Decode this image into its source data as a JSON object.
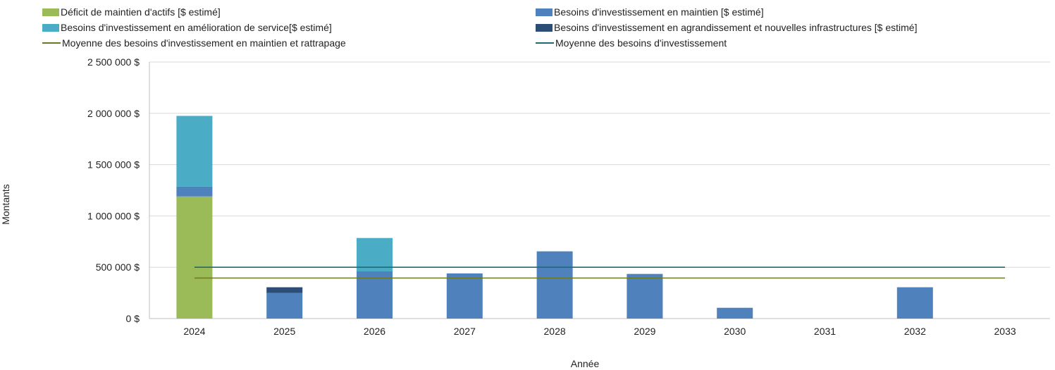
{
  "chart_data": {
    "type": "bar",
    "stacked": true,
    "title": "",
    "xlabel": "Année",
    "ylabel": "Montants",
    "ylim": [
      0,
      2500000
    ],
    "yticks": [
      0,
      500000,
      1000000,
      1500000,
      2000000,
      2500000
    ],
    "ytick_labels": [
      "0 $",
      "500 000 $",
      "1 000 000 $",
      "1 500 000 $",
      "2 000 000 $",
      "2 500 000 $"
    ],
    "categories": [
      "2024",
      "2025",
      "2026",
      "2027",
      "2028",
      "2029",
      "2030",
      "2031",
      "2032",
      "2033"
    ],
    "series": [
      {
        "name": "Déficit de maintien d'actifs [$ estimé]",
        "color": "#9bbb59",
        "kind": "bar",
        "values": [
          1190000,
          0,
          0,
          0,
          0,
          0,
          0,
          0,
          0,
          0
        ]
      },
      {
        "name": "Besoins d'investissement en maintien [$ estimé]",
        "color": "#4f81bd",
        "kind": "bar",
        "values": [
          95000,
          250000,
          460000,
          440000,
          655000,
          435000,
          105000,
          0,
          305000,
          0
        ]
      },
      {
        "name": "Besoins d'investissement en amélioration de service[$ estimé]",
        "color": "#4bacc6",
        "kind": "bar",
        "values": [
          690000,
          0,
          325000,
          0,
          0,
          0,
          0,
          0,
          0,
          0
        ]
      },
      {
        "name": "Besoins d'investissement en agrandissement et nouvelles infrastructures [$ estimé]",
        "color": "#2c4d75",
        "kind": "bar",
        "values": [
          0,
          55000,
          0,
          0,
          0,
          0,
          0,
          0,
          0,
          0
        ]
      },
      {
        "name": "Moyenne des besoins d'investissement en maintien et rattrapage",
        "color": "#6b7a1f",
        "kind": "line",
        "values": [
          395000,
          395000,
          395000,
          395000,
          395000,
          395000,
          395000,
          395000,
          395000,
          395000
        ]
      },
      {
        "name": "Moyenne des besoins d'investissement",
        "color": "#1f6b73",
        "kind": "line",
        "values": [
          500000,
          500000,
          500000,
          500000,
          500000,
          500000,
          500000,
          500000,
          500000,
          500000
        ]
      }
    ],
    "grid": true,
    "legend_position": "top"
  }
}
